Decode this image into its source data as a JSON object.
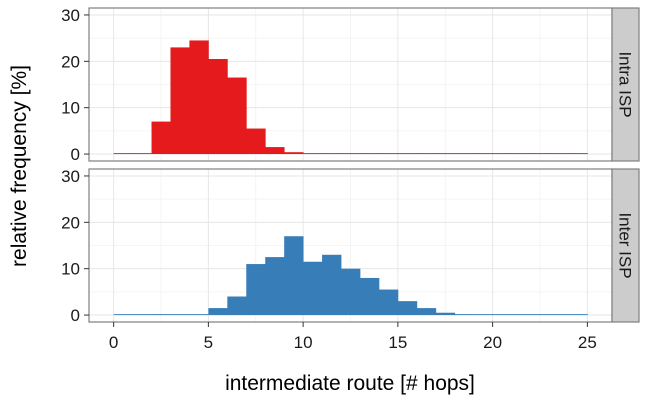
{
  "chart_data": {
    "type": "bar",
    "xlabel": "intermediate route [# hops]",
    "ylabel": "relative frequency [%]",
    "xlim": [
      -1.3,
      26.3
    ],
    "ylim": [
      -1.5,
      31.5
    ],
    "x_ticks": [
      0,
      5,
      10,
      15,
      20,
      25
    ],
    "y_ticks": [
      0,
      10,
      20,
      30
    ],
    "grid": true,
    "bin_width": 1,
    "x": [
      0,
      1,
      2,
      3,
      4,
      5,
      6,
      7,
      8,
      9,
      10,
      11,
      12,
      13,
      14,
      15,
      16,
      17,
      18,
      19,
      20,
      21,
      22,
      23,
      24
    ],
    "series": [
      {
        "name": "Intra ISP",
        "color": "#e41a1c",
        "values": [
          0,
          0,
          7,
          23,
          24.5,
          20.5,
          16.5,
          5.5,
          1.5,
          0.4,
          0.1,
          0,
          0,
          0,
          0,
          0,
          0,
          0,
          0,
          0,
          0,
          0,
          0,
          0,
          0
        ]
      },
      {
        "name": "Inter ISP",
        "color": "#377eb8",
        "values": [
          0,
          0,
          0.2,
          0.1,
          0.1,
          1.5,
          4,
          11,
          12.5,
          17,
          11.5,
          13,
          10,
          8,
          5.5,
          3,
          1.5,
          0.5,
          0.2,
          0.1,
          0.1,
          0,
          0,
          0,
          0
        ]
      }
    ]
  }
}
